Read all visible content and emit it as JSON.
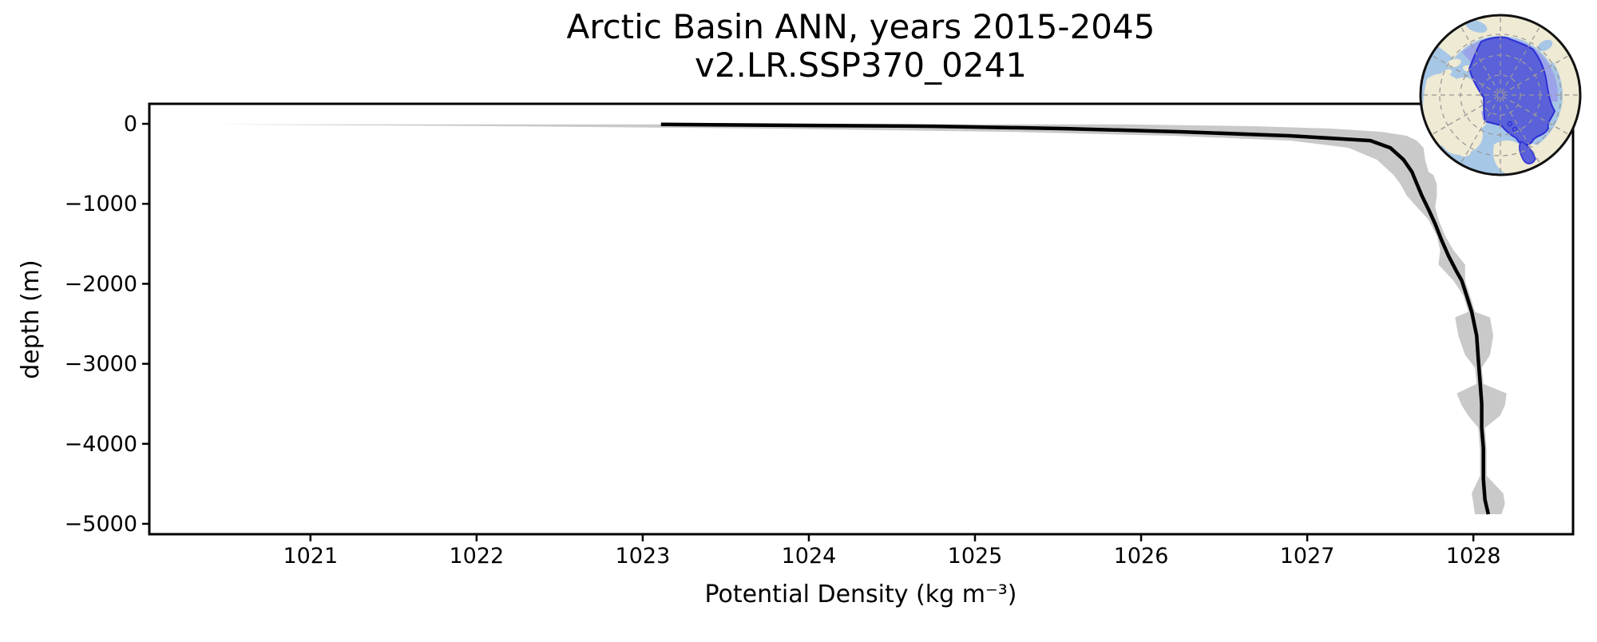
{
  "chart_data": {
    "type": "line",
    "title": "Arctic Basin ANN, years 2015-2045",
    "subtitle": "v2.LR.SSP370_0241",
    "xlabel": "Potential Density (kg m⁻³)",
    "ylabel": "depth (m)",
    "xlim": [
      1020.03,
      1028.6
    ],
    "ylim": [
      -5130,
      250
    ],
    "xticks": [
      1021,
      1022,
      1023,
      1024,
      1025,
      1026,
      1027,
      1028
    ],
    "yticks": [
      0,
      -1000,
      -2000,
      -3000,
      -4000,
      -5000
    ],
    "grid": false,
    "legend": "none",
    "series": [
      {
        "name": "ensemble-mean-profile",
        "color": "#000000",
        "linewidth": 4.5,
        "depth": [
          -8,
          -30,
          -60,
          -100,
          -150,
          -210,
          -300,
          -450,
          -600,
          -750,
          -900,
          -1070,
          -1250,
          -1460,
          -1650,
          -1850,
          -1960,
          -2150,
          -2350,
          -2650,
          -2950,
          -3220,
          -3500,
          -3800,
          -4050,
          -4440,
          -4700,
          -4880
        ],
        "density": [
          1023.11,
          1024.75,
          1025.55,
          1026.25,
          1026.9,
          1027.38,
          1027.5,
          1027.58,
          1027.63,
          1027.66,
          1027.69,
          1027.73,
          1027.77,
          1027.81,
          1027.85,
          1027.9,
          1027.93,
          1027.96,
          1027.99,
          1028.02,
          1028.03,
          1028.04,
          1028.05,
          1028.05,
          1028.06,
          1028.06,
          1028.07,
          1028.09
        ]
      }
    ],
    "band": {
      "name": "ensemble-spread-band",
      "color": "#c9c9c9",
      "depth": [
        -8,
        -30,
        -60,
        -100,
        -150,
        -210,
        -300,
        -450,
        -600,
        -640,
        -750,
        -900,
        -1040,
        -1200,
        -1400,
        -1580,
        -1760,
        -1960,
        -2150,
        -2350,
        -2420,
        -2650,
        -2890,
        -3050,
        -3250,
        -3370,
        -3520,
        -3650,
        -3800,
        -4100,
        -4400,
        -4620,
        -4750,
        -4880
      ],
      "min": [
        1020.43,
        1022.2,
        1023.8,
        1025.2,
        1026.2,
        1026.9,
        1027.25,
        1027.42,
        1027.5,
        1027.52,
        1027.56,
        1027.6,
        1027.66,
        1027.73,
        1027.78,
        1027.8,
        1027.79,
        1027.88,
        1027.94,
        1027.97,
        1027.89,
        1027.91,
        1027.95,
        1028.01,
        1028.02,
        1027.9,
        1027.93,
        1027.97,
        1028.03,
        1028.04,
        1028.04,
        1027.99,
        1028.0,
        1028.01
      ],
      "max": [
        1025.9,
        1026.7,
        1027.15,
        1027.45,
        1027.6,
        1027.66,
        1027.7,
        1027.71,
        1027.73,
        1027.76,
        1027.78,
        1027.78,
        1027.77,
        1027.79,
        1027.83,
        1027.88,
        1027.95,
        1027.95,
        1027.98,
        1028.01,
        1028.1,
        1028.12,
        1028.1,
        1028.05,
        1028.06,
        1028.2,
        1028.19,
        1028.16,
        1028.07,
        1028.08,
        1028.08,
        1028.18,
        1028.19,
        1028.17
      ]
    }
  },
  "inset": {
    "name": "arctic-basin-region-map",
    "description": "North polar map inset with the Arctic Basin region highlighted",
    "colors": {
      "land": "#efead3",
      "ocean": "#a7c7e7",
      "region": "#5a61d9",
      "region_light": "#9aa0e8",
      "region_outline": "#2e2ed6",
      "graticule": "#999999",
      "rim": "#111111"
    }
  }
}
